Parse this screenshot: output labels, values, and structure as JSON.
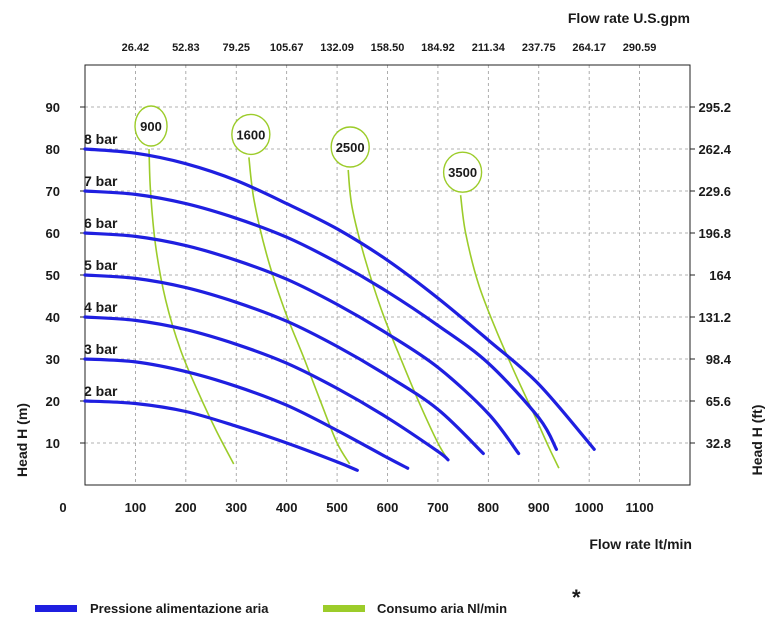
{
  "chart_data": {
    "type": "line",
    "x_top_title": "Flow rate U.S.gpm",
    "x_top_ticks": [
      "26.42",
      "52.83",
      "79.25",
      "105.67",
      "132.09",
      "158.50",
      "184.92",
      "211.34",
      "237.75",
      "264.17",
      "290.59"
    ],
    "xlabel": "Flow rate  lt/min",
    "x_ticks": [
      "0",
      "100",
      "200",
      "300",
      "400",
      "500",
      "600",
      "700",
      "800",
      "900",
      "1000",
      "1100"
    ],
    "xlim": [
      0,
      1200
    ],
    "ylabel_left": "Head H (m)",
    "y_ticks": [
      "10",
      "20",
      "30",
      "40",
      "50",
      "60",
      "70",
      "80",
      "90"
    ],
    "ylim": [
      0,
      100
    ],
    "ylabel_right": "Head H (ft)",
    "y_right_ticks": [
      "32.8",
      "65.6",
      "98.4",
      "131.2",
      "164",
      "196.8",
      "229.6",
      "262.4",
      "295.2"
    ],
    "grid": true,
    "pressure_color": "#1f1fe0",
    "air_color": "#9ccc2a",
    "pressure_series": [
      {
        "name": "2 bar",
        "x": [
          0,
          100,
          200,
          300,
          400,
          500,
          540
        ],
        "y": [
          20,
          19.4,
          17.5,
          14,
          10,
          5.5,
          3.5
        ]
      },
      {
        "name": "3 bar",
        "x": [
          0,
          100,
          200,
          300,
          400,
          500,
          600,
          640
        ],
        "y": [
          30,
          29.3,
          27,
          23.5,
          19,
          13,
          6.5,
          4
        ]
      },
      {
        "name": "4 bar",
        "x": [
          0,
          100,
          200,
          300,
          400,
          500,
          600,
          700,
          720
        ],
        "y": [
          40,
          39.2,
          37,
          33.5,
          29,
          23,
          16,
          8,
          6
        ]
      },
      {
        "name": "5 bar",
        "x": [
          0,
          100,
          200,
          300,
          400,
          500,
          600,
          700,
          790
        ],
        "y": [
          50,
          49.2,
          47,
          43.5,
          39,
          33,
          26,
          18,
          7.5
        ]
      },
      {
        "name": "6 bar",
        "x": [
          0,
          100,
          200,
          300,
          400,
          500,
          600,
          700,
          800,
          860
        ],
        "y": [
          60,
          59.2,
          57,
          53.5,
          49,
          43,
          36,
          28,
          17,
          7.5
        ]
      },
      {
        "name": "7 bar",
        "x": [
          0,
          100,
          200,
          300,
          400,
          500,
          600,
          700,
          800,
          900,
          935
        ],
        "y": [
          70,
          69.2,
          67,
          63.5,
          59,
          53,
          46,
          38,
          29,
          16,
          8.5
        ]
      },
      {
        "name": "8 bar",
        "x": [
          0,
          100,
          200,
          300,
          400,
          500,
          600,
          700,
          800,
          900,
          1010
        ],
        "y": [
          80,
          79,
          76.5,
          72.5,
          67,
          61,
          53.5,
          44.5,
          34.5,
          24,
          8.5
        ]
      }
    ],
    "air_series": [
      {
        "name": "900",
        "x": [
          127,
          130,
          140,
          160,
          190,
          225,
          260,
          295
        ],
        "y": [
          80,
          70,
          57,
          44,
          32,
          22,
          13,
          5
        ]
      },
      {
        "name": "1600",
        "x": [
          325,
          335,
          360,
          395,
          435,
          470,
          500,
          525
        ],
        "y": [
          78,
          68,
          55,
          42,
          30,
          19,
          10,
          5
        ]
      },
      {
        "name": "2500",
        "x": [
          522,
          530,
          555,
          590,
          630,
          665,
          700,
          720
        ],
        "y": [
          75,
          66,
          54,
          41,
          29,
          19,
          10,
          6
        ]
      },
      {
        "name": "3500",
        "x": [
          745,
          755,
          780,
          815,
          855,
          890,
          920,
          940
        ],
        "y": [
          69,
          60,
          48,
          37,
          26,
          17,
          9,
          4
        ]
      }
    ]
  },
  "legend": {
    "pressure_label": "Pressione alimentazione aria",
    "air_label": "Consumo aria Nl/min"
  },
  "asterisk": "*"
}
